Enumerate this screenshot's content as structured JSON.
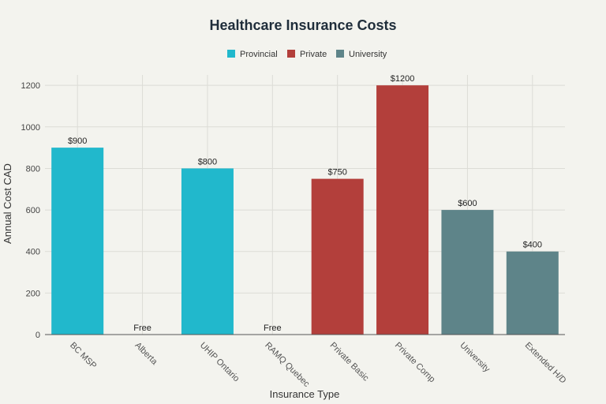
{
  "chart_data": {
    "type": "bar",
    "title": "Healthcare Insurance Costs",
    "xlabel": "Insurance Type",
    "ylabel": "Annual Cost CAD",
    "ylim": [
      0,
      1250
    ],
    "yticks": [
      0,
      200,
      400,
      600,
      800,
      1000,
      1200
    ],
    "grid": true,
    "legend_position": "top-center",
    "categories": [
      "BC MSP",
      "Alberta",
      "UHIP Ontario",
      "RAMQ Quebec",
      "Private Basic",
      "Private Comp",
      "University",
      "Extended H/D"
    ],
    "values": [
      900,
      0,
      800,
      0,
      750,
      1200,
      600,
      400
    ],
    "value_labels": [
      "$900",
      "Free",
      "$800",
      "Free",
      "$750",
      "$1200",
      "$600",
      "$400"
    ],
    "groups": [
      "Provincial",
      "Provincial",
      "Provincial",
      "Provincial",
      "Private",
      "Private",
      "University",
      "University"
    ],
    "legend": [
      {
        "name": "Provincial",
        "color": "#21b8cc"
      },
      {
        "name": "Private",
        "color": "#b33f3b"
      },
      {
        "name": "University",
        "color": "#5e8489"
      }
    ]
  }
}
